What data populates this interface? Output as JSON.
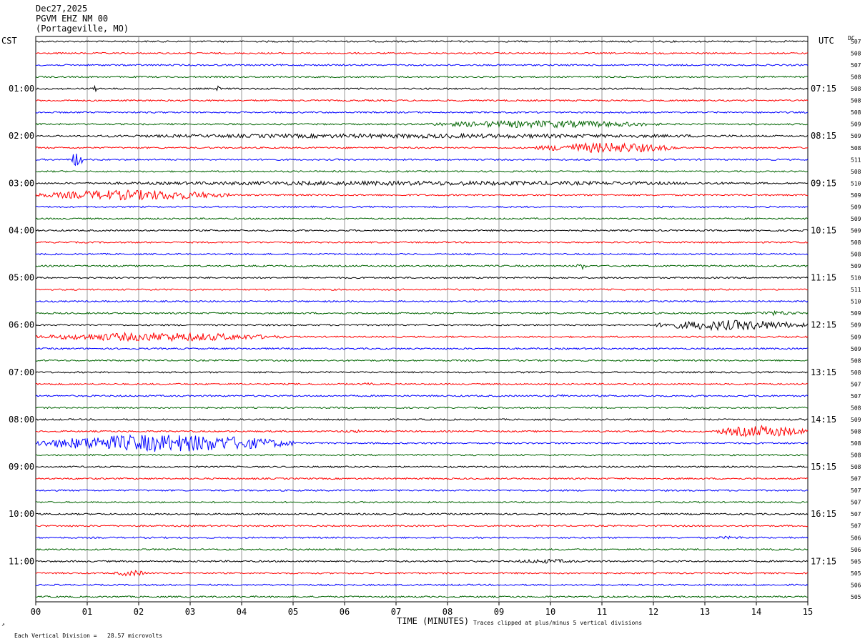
{
  "header": {
    "date": "Dec27,2025",
    "station": "PGVM EHZ NM 00",
    "location": "(Portageville, MO)"
  },
  "left_tz": "CST",
  "right_tz": "UTC",
  "dc_label": "DC",
  "footer": {
    "scale": "Each Vertical Division =   28.57 microvolts",
    "xlabel": "TIME (MINUTES)",
    "clip_note": "Traces clipped at plus/minus 5 vertical divisions"
  },
  "colors": {
    "black": "#000000",
    "red": "#ff0000",
    "blue": "#0000ff",
    "green": "#006400",
    "grid": "#808080"
  },
  "chart_data": {
    "type": "line",
    "x_ticks": [
      "00",
      "01",
      "02",
      "03",
      "04",
      "05",
      "06",
      "07",
      "08",
      "09",
      "10",
      "11",
      "12",
      "13",
      "14",
      "15"
    ],
    "xlim": [
      0,
      15
    ],
    "row_count": 48,
    "trace_color_cycle": [
      "black",
      "red",
      "blue",
      "green"
    ],
    "left_hour_labels": [
      {
        "row": 4,
        "text": "01:00"
      },
      {
        "row": 8,
        "text": "02:00"
      },
      {
        "row": 12,
        "text": "03:00"
      },
      {
        "row": 16,
        "text": "04:00"
      },
      {
        "row": 20,
        "text": "05:00"
      },
      {
        "row": 24,
        "text": "06:00"
      },
      {
        "row": 28,
        "text": "07:00"
      },
      {
        "row": 32,
        "text": "08:00"
      },
      {
        "row": 36,
        "text": "09:00"
      },
      {
        "row": 40,
        "text": "10:00"
      },
      {
        "row": 44,
        "text": "11:00"
      }
    ],
    "right_hour_labels": [
      {
        "row": 4,
        "text": "07:15"
      },
      {
        "row": 8,
        "text": "08:15"
      },
      {
        "row": 12,
        "text": "09:15"
      },
      {
        "row": 16,
        "text": "10:15"
      },
      {
        "row": 20,
        "text": "11:15"
      },
      {
        "row": 24,
        "text": "12:15"
      },
      {
        "row": 28,
        "text": "13:15"
      },
      {
        "row": 32,
        "text": "14:15"
      },
      {
        "row": 36,
        "text": "15:15"
      },
      {
        "row": 40,
        "text": "16:15"
      },
      {
        "row": 44,
        "text": "17:15"
      }
    ],
    "dc_offsets": [
      507,
      508,
      507,
      508,
      508,
      508,
      508,
      509,
      509,
      508,
      511,
      508,
      510,
      509,
      509,
      509,
      509,
      508,
      508,
      509,
      510,
      511,
      510,
      509,
      509,
      509,
      509,
      508,
      508,
      507,
      507,
      508,
      509,
      508,
      508,
      508,
      508,
      507,
      507,
      507,
      507,
      507,
      506,
      506,
      505,
      505,
      506,
      505
    ],
    "events": [
      {
        "row": 4,
        "x0": 1.1,
        "x1": 1.2,
        "amp": 4
      },
      {
        "row": 4,
        "x0": 3.5,
        "x1": 3.6,
        "amp": 4
      },
      {
        "row": 7,
        "x0": 7.5,
        "x1": 12.2,
        "amp": 5
      },
      {
        "row": 8,
        "x0": 0.0,
        "x1": 15.0,
        "amp": 3
      },
      {
        "row": 9,
        "x0": 9.7,
        "x1": 12.5,
        "amp": 7
      },
      {
        "row": 10,
        "x0": 0.7,
        "x1": 0.9,
        "amp": 14
      },
      {
        "row": 12,
        "x0": 0.0,
        "x1": 15.0,
        "amp": 3
      },
      {
        "row": 13,
        "x0": 0.0,
        "x1": 3.8,
        "amp": 7
      },
      {
        "row": 19,
        "x0": 10.5,
        "x1": 10.7,
        "amp": 5
      },
      {
        "row": 23,
        "x0": 13.8,
        "x1": 15.0,
        "amp": 3
      },
      {
        "row": 24,
        "x0": 12.0,
        "x1": 15.0,
        "amp": 7
      },
      {
        "row": 25,
        "x0": 0.0,
        "x1": 4.8,
        "amp": 6
      },
      {
        "row": 29,
        "x0": 6.3,
        "x1": 6.6,
        "amp": 2
      },
      {
        "row": 30,
        "x0": 10.0,
        "x1": 10.5,
        "amp": 2
      },
      {
        "row": 33,
        "x0": 5.8,
        "x1": 6.6,
        "amp": 2
      },
      {
        "row": 33,
        "x0": 13.2,
        "x1": 15.0,
        "amp": 8
      },
      {
        "row": 34,
        "x0": 0.0,
        "x1": 5.0,
        "amp": 12
      },
      {
        "row": 42,
        "x0": 13.0,
        "x1": 14.0,
        "amp": 2
      },
      {
        "row": 44,
        "x0": 9.2,
        "x1": 10.6,
        "amp": 3
      },
      {
        "row": 45,
        "x0": 1.5,
        "x1": 2.2,
        "amp": 4
      }
    ]
  }
}
